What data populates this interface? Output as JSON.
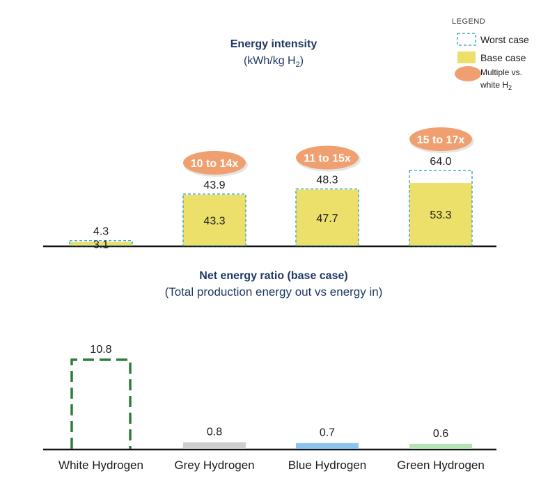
{
  "colors": {
    "base": "#ece06a",
    "worst_stroke": "#4aa8b8",
    "badge": "#f0a070",
    "title": "#1f3864",
    "ratio_white": "#2e7d3a",
    "ratio_grey": "#cfcfcf",
    "ratio_blue": "#8cc4ee",
    "ratio_green": "#b6e3b6"
  },
  "legend": {
    "title": "LEGEND",
    "worst": "Worst case",
    "base": "Base case",
    "multiple_line1": "Multiple vs.",
    "multiple_line2": "white H",
    "multiple_sub": "2"
  },
  "chart_data": [
    {
      "type": "bar",
      "title": "Energy intensity",
      "subtitle": "(kWh/kg H",
      "subtitle_sub": "2",
      "subtitle_end": ")",
      "categories": [
        "White Hydrogen",
        "Grey Hydrogen",
        "Blue Hydrogen",
        "Green Hydrogen"
      ],
      "series": [
        {
          "name": "Base case",
          "values": [
            3.1,
            43.3,
            47.7,
            53.3
          ],
          "labels": [
            "3.1",
            "43.3",
            "47.7",
            "53.3"
          ]
        },
        {
          "name": "Worst case",
          "values": [
            4.3,
            43.9,
            48.3,
            64.0
          ],
          "labels": [
            "4.3",
            "43.9",
            "48.3",
            "64.0"
          ]
        }
      ],
      "multiples": [
        "",
        "10 to 14x",
        "11 to 15x",
        "15 to 17x"
      ],
      "ylim": [
        0,
        64
      ]
    },
    {
      "type": "bar",
      "title": "Net energy ratio (base case)",
      "subtitle": "(Total production energy out vs energy in)",
      "categories": [
        "White Hydrogen",
        "Grey Hydrogen",
        "Blue Hydrogen",
        "Green Hydrogen"
      ],
      "values": [
        10.8,
        0.8,
        0.7,
        0.6
      ],
      "labels": [
        "10.8",
        "0.8",
        "0.7",
        "0.6"
      ],
      "ylim": [
        0,
        10.8
      ]
    }
  ]
}
